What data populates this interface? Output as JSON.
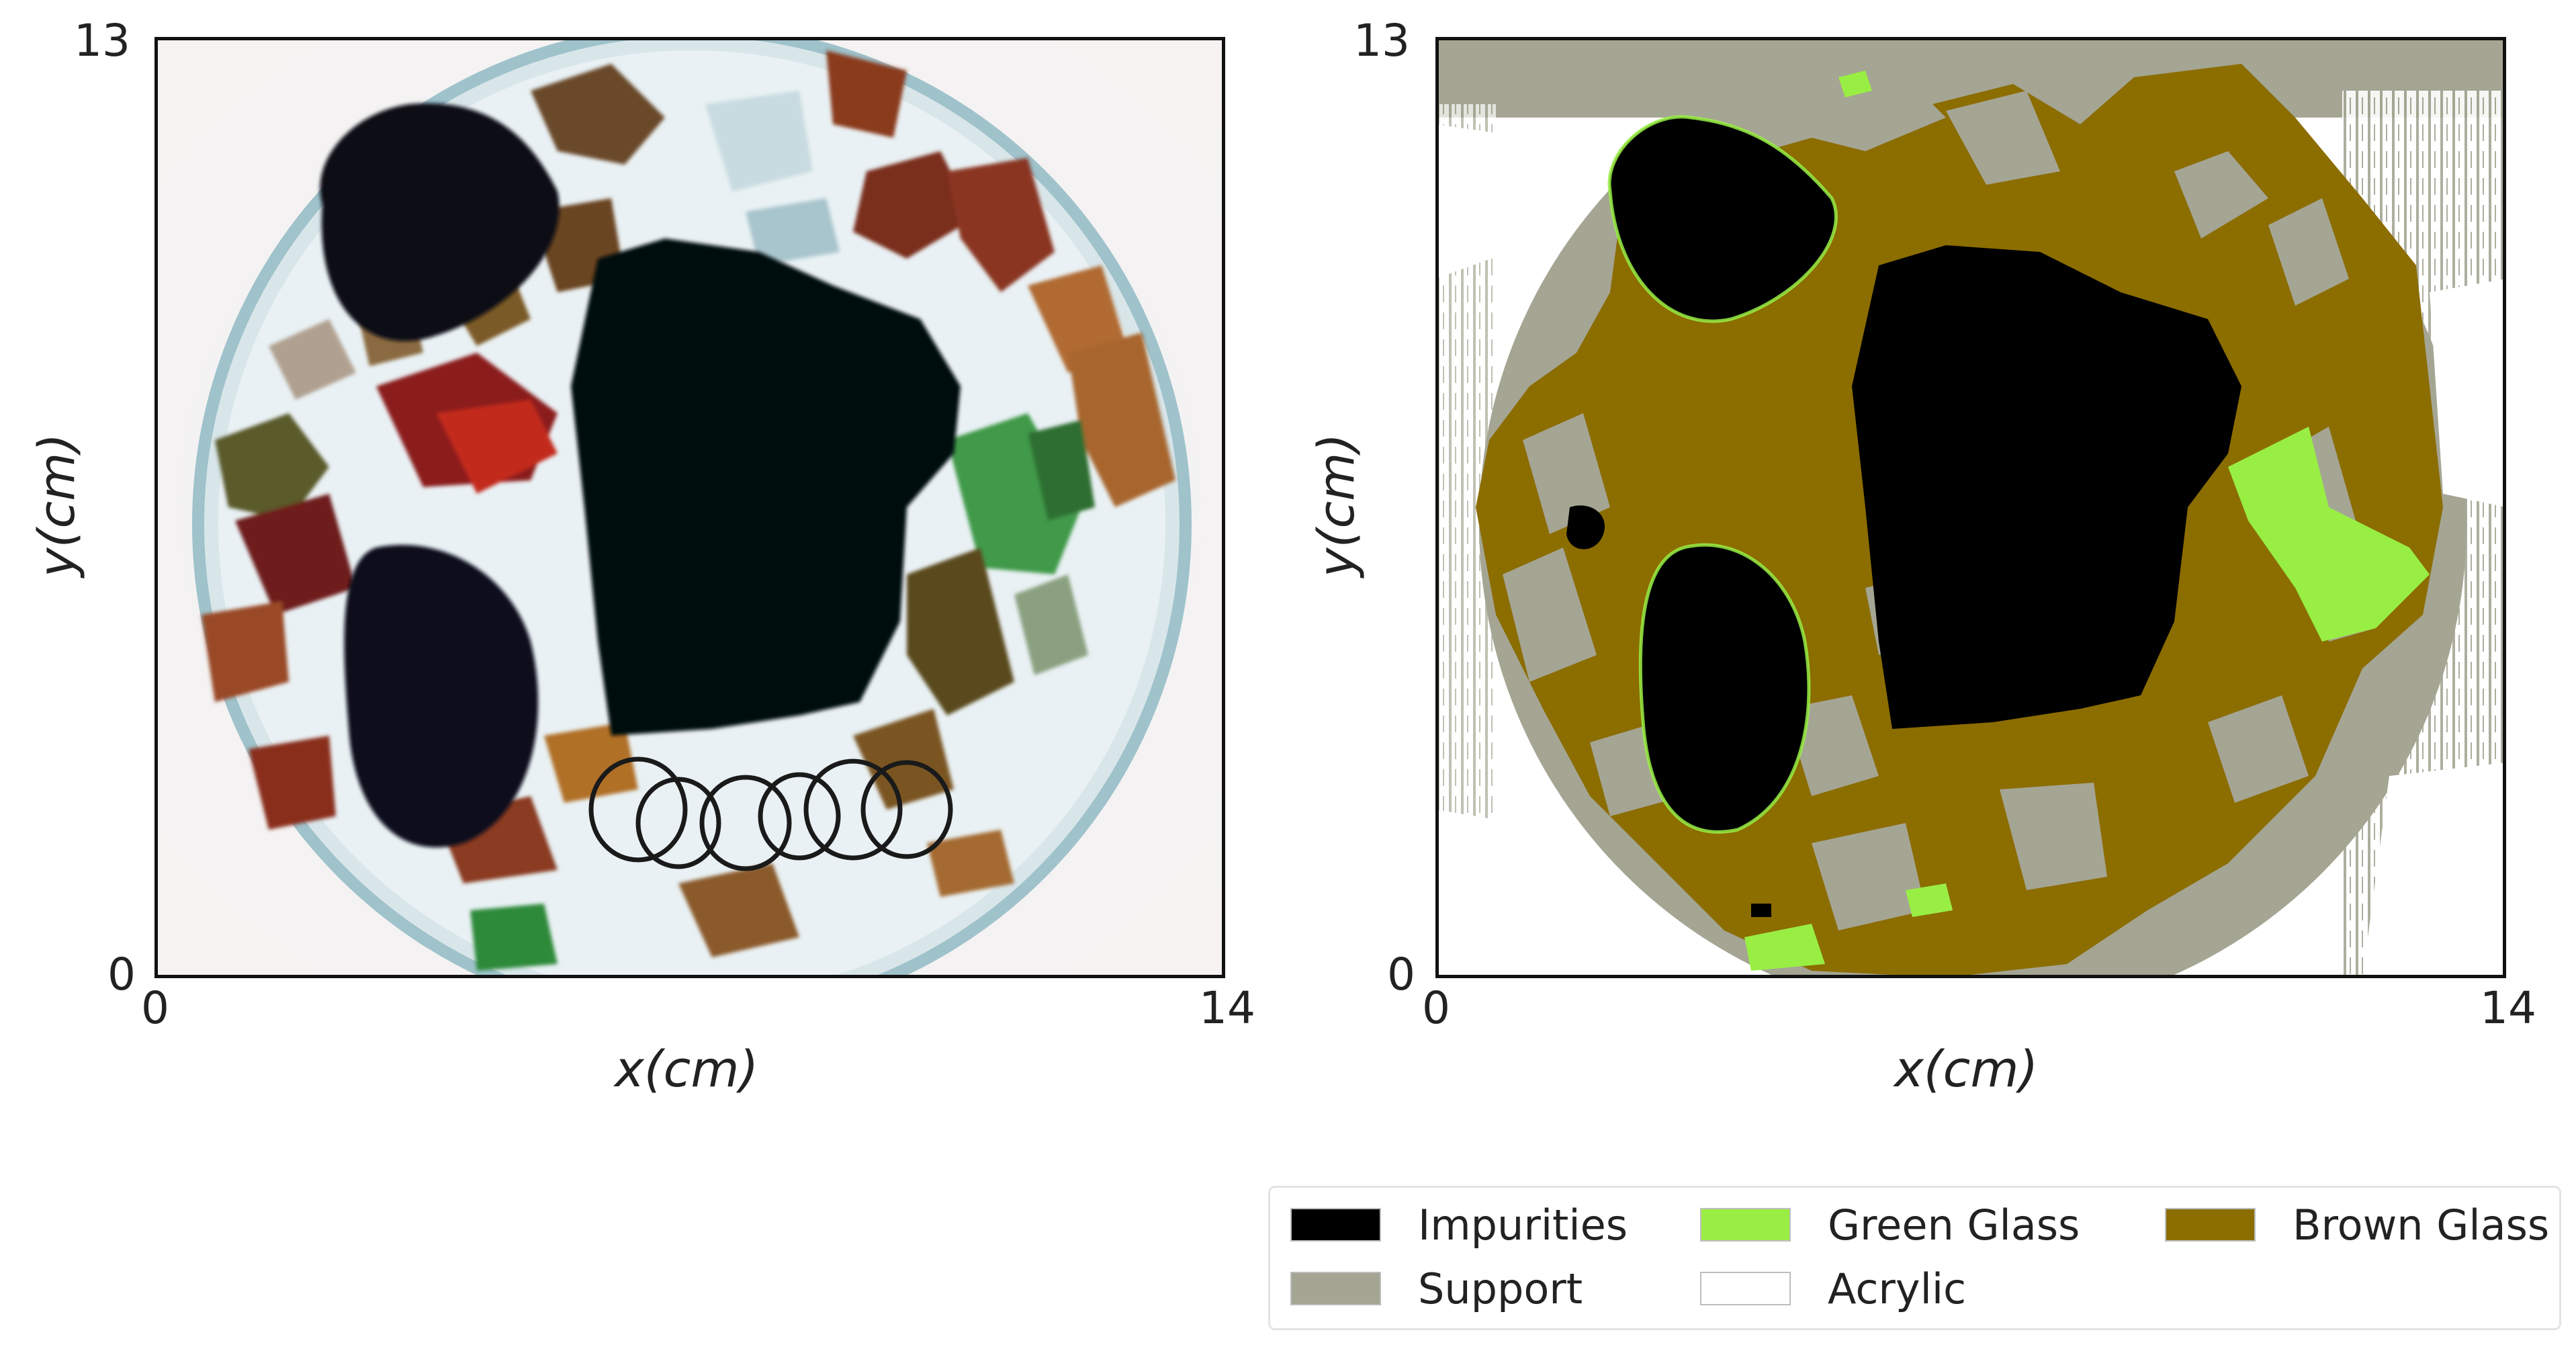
{
  "left_plot": {
    "x_axis": {
      "label": "x(cm)",
      "min_tick": "0",
      "max_tick": "14",
      "range": [
        0,
        14
      ]
    },
    "y_axis": {
      "label": "y(cm)",
      "min_tick": "0",
      "max_tick": "13",
      "range": [
        0,
        13
      ]
    }
  },
  "right_plot": {
    "x_axis": {
      "label": "x(cm)",
      "min_tick": "0",
      "max_tick": "14",
      "range": [
        0,
        14
      ]
    },
    "y_axis": {
      "label": "y(cm)",
      "min_tick": "0",
      "max_tick": "13",
      "range": [
        0,
        13
      ]
    }
  },
  "legend": {
    "placement": "bottom-right",
    "entries": [
      {
        "label": "Impurities",
        "color": "#000000"
      },
      {
        "label": "Green Glass",
        "color": "#99ee44"
      },
      {
        "label": "Brown Glass",
        "color": "#8b6d00"
      },
      {
        "label": "Support",
        "color": "#a5a594"
      },
      {
        "label": "Acrylic",
        "color": "#ffffff"
      }
    ]
  },
  "colors": {
    "impurities": "#000000",
    "green_glass": "#99ee44",
    "brown_glass": "#8b6d00",
    "support": "#a5a594",
    "acrylic": "#ffffff"
  }
}
